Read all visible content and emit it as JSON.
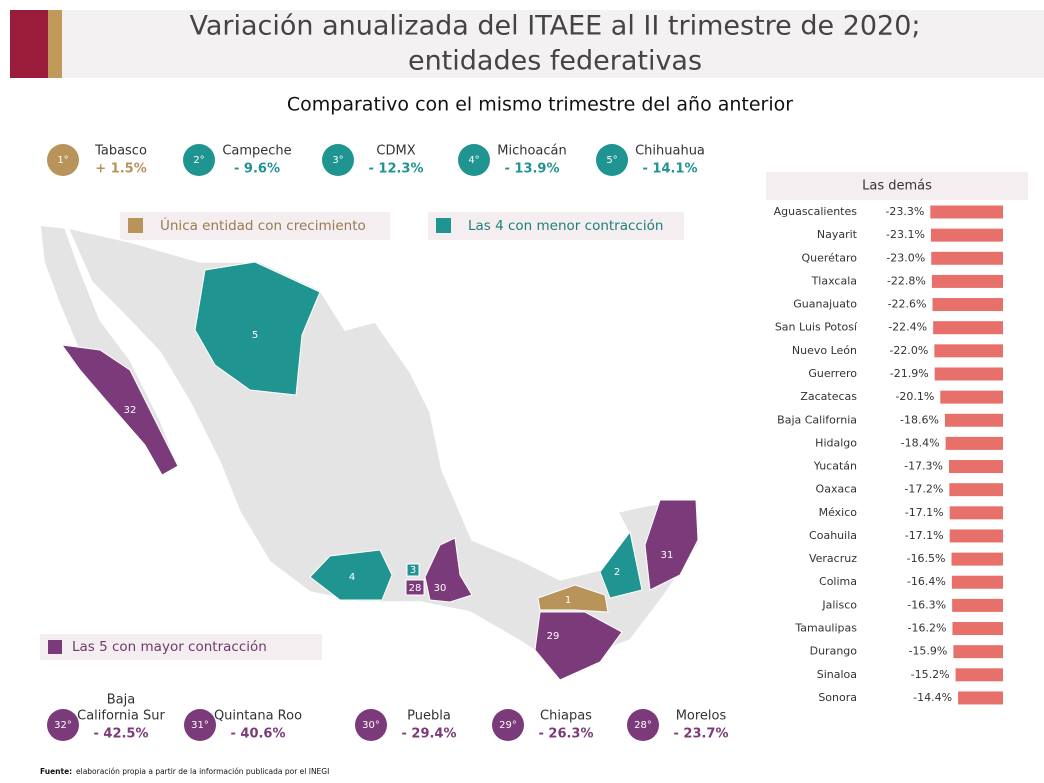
{
  "title": [
    "Variación anualizada del ITAEE al II trimestre de 2020;",
    "entidades federativas"
  ],
  "subtitle": "Comparativo con el mismo trimestre del año anterior",
  "top": [
    {
      "rank": "1°",
      "name": [
        "Tabasco"
      ],
      "value": "+ 1.5%",
      "color": "#b8935a"
    },
    {
      "rank": "2°",
      "name": [
        "Campeche"
      ],
      "value": "- 9.6%",
      "color": "#1f9490"
    },
    {
      "rank": "3°",
      "name": [
        "CDMX"
      ],
      "value": "- 12.3%",
      "color": "#1f9490"
    },
    {
      "rank": "4°",
      "name": [
        "Michoacán"
      ],
      "value": "- 13.9%",
      "color": "#1f9490"
    },
    {
      "rank": "5°",
      "name": [
        "Chihuahua"
      ],
      "value": "- 14.1%",
      "color": "#1f9490"
    }
  ],
  "legend": {
    "growth": "Única entidad con crecimiento",
    "least": "Las 4 con menor contracción",
    "most": "Las 5 con mayor contracción"
  },
  "bottom": [
    {
      "rank": "32°",
      "name": [
        "Baja",
        "California Sur"
      ],
      "value": "- 42.5%",
      "color": "#7b3a79"
    },
    {
      "rank": "31°",
      "name": [
        "Quintana Roo"
      ],
      "value": "- 40.6%",
      "color": "#7b3a79"
    },
    {
      "rank": "30°",
      "name": [
        "Puebla"
      ],
      "value": "- 29.4%",
      "color": "#7b3a79"
    },
    {
      "rank": "29°",
      "name": [
        "Chiapas"
      ],
      "value": "- 26.3%",
      "color": "#7b3a79"
    },
    {
      "rank": "28°",
      "name": [
        "Morelos"
      ],
      "value": "- 23.7%",
      "color": "#7b3a79"
    }
  ],
  "map_labels": [
    "5",
    "32",
    "4",
    "3",
    "28",
    "30",
    "1",
    "2",
    "31",
    "29"
  ],
  "chart_data": {
    "type": "bar",
    "title": "Las demás",
    "categories": [
      "Aguascalientes",
      "Nayarit",
      "Querétaro",
      "Tlaxcala",
      "Guanajuato",
      "San Luis Potosí",
      "Nuevo León",
      "Guerrero",
      "Zacatecas",
      "Baja California",
      "Hidalgo",
      "Yucatán",
      "Oaxaca",
      "México",
      "Coahuila",
      "Veracruz",
      "Colima",
      "Jalisco",
      "Tamaulipas",
      "Durango",
      "Sinaloa",
      "Sonora"
    ],
    "values": [
      -23.3,
      -23.1,
      -23.0,
      -22.8,
      -22.6,
      -22.4,
      -22.0,
      -21.9,
      -20.1,
      -18.6,
      -18.4,
      -17.3,
      -17.2,
      -17.1,
      -17.1,
      -16.5,
      -16.4,
      -16.3,
      -16.2,
      -15.9,
      -15.2,
      -14.4
    ],
    "value_labels": [
      "-23.3%",
      "-23.1%",
      "-23.0%",
      "-22.8%",
      "-22.6%",
      "-22.4%",
      "-22.0%",
      "-21.9%",
      "-20.1%",
      "-18.6%",
      "-18.4%",
      "-17.3%",
      "-17.2%",
      "-17.1%",
      "-17.1%",
      "-16.5%",
      "-16.4%",
      "-16.3%",
      "-16.2%",
      "-15.9%",
      "-15.2%",
      "-14.4%"
    ],
    "color": "#e8706a",
    "xlim": [
      -25,
      0
    ]
  },
  "source_label": "Fuente:",
  "source": "elaboración propia a partir de la información publicada por el INEGI"
}
